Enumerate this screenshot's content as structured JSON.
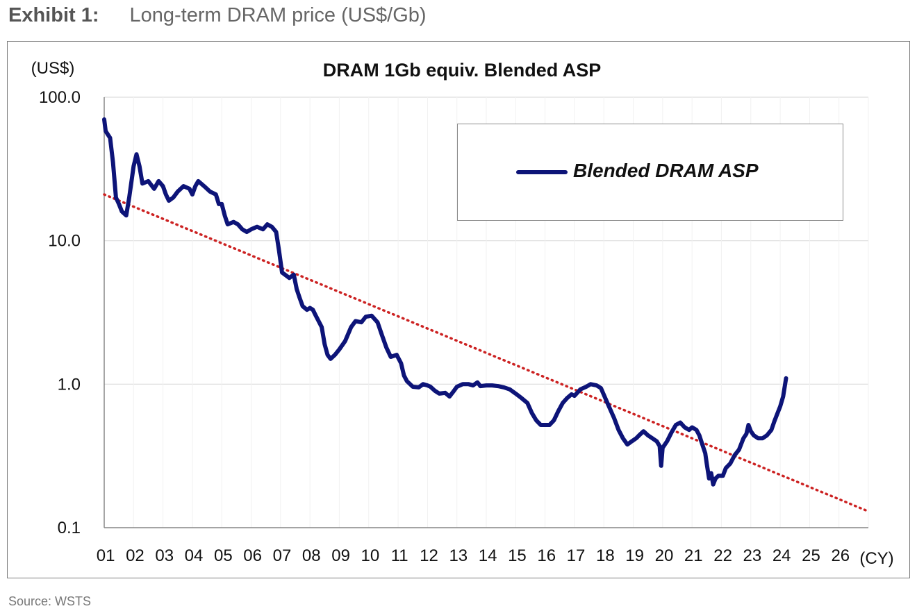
{
  "header": {
    "exhibit_label": "Exhibit 1:",
    "exhibit_title": "Long-term DRAM price (US$/Gb)"
  },
  "footer": {
    "source": "Source: WSTS"
  },
  "colors": {
    "series": "#0d1478",
    "trend": "#cc2222",
    "grid": "#dddddd"
  },
  "chart_data": {
    "type": "line",
    "title": "DRAM 1Gb equiv. Blended ASP",
    "ylabel": "(US$)",
    "xlabel": "(CY)",
    "yscale": "log",
    "ylim": [
      0.1,
      100
    ],
    "xlim": [
      2001,
      2027
    ],
    "yticks": [
      {
        "value": 100,
        "label": "100.0"
      },
      {
        "value": 10,
        "label": "10.0"
      },
      {
        "value": 1,
        "label": "1.0"
      },
      {
        "value": 0.1,
        "label": "0.1"
      }
    ],
    "xticks": [
      "01",
      "02",
      "03",
      "04",
      "05",
      "06",
      "07",
      "08",
      "09",
      "10",
      "11",
      "12",
      "13",
      "14",
      "15",
      "16",
      "17",
      "18",
      "19",
      "20",
      "21",
      "22",
      "23",
      "24",
      "25",
      "26"
    ],
    "grid": true,
    "legend_position": "top-right",
    "series": [
      {
        "name": "Blended DRAM ASP",
        "style": "solid",
        "points": [
          [
            2001.0,
            70
          ],
          [
            2001.05,
            58
          ],
          [
            2001.2,
            52
          ],
          [
            2001.3,
            35
          ],
          [
            2001.4,
            20
          ],
          [
            2001.5,
            18
          ],
          [
            2001.6,
            16
          ],
          [
            2001.75,
            15
          ],
          [
            2001.85,
            20
          ],
          [
            2002.0,
            33
          ],
          [
            2002.1,
            40
          ],
          [
            2002.2,
            33
          ],
          [
            2002.3,
            25
          ],
          [
            2002.5,
            26
          ],
          [
            2002.7,
            23
          ],
          [
            2002.85,
            26
          ],
          [
            2003.0,
            24
          ],
          [
            2003.1,
            21
          ],
          [
            2003.2,
            19
          ],
          [
            2003.35,
            20
          ],
          [
            2003.5,
            22
          ],
          [
            2003.7,
            24
          ],
          [
            2003.9,
            23
          ],
          [
            2004.0,
            21
          ],
          [
            2004.1,
            24
          ],
          [
            2004.2,
            26
          ],
          [
            2004.4,
            24
          ],
          [
            2004.6,
            22
          ],
          [
            2004.8,
            21
          ],
          [
            2004.9,
            18
          ],
          [
            2005.0,
            18
          ],
          [
            2005.1,
            15
          ],
          [
            2005.2,
            13
          ],
          [
            2005.4,
            13.5
          ],
          [
            2005.55,
            13
          ],
          [
            2005.7,
            12
          ],
          [
            2005.85,
            11.5
          ],
          [
            2006.0,
            12
          ],
          [
            2006.2,
            12.5
          ],
          [
            2006.4,
            12
          ],
          [
            2006.55,
            13
          ],
          [
            2006.7,
            12.5
          ],
          [
            2006.85,
            11.5
          ],
          [
            2006.95,
            8.5
          ],
          [
            2007.05,
            6
          ],
          [
            2007.15,
            5.8
          ],
          [
            2007.3,
            5.5
          ],
          [
            2007.45,
            5.8
          ],
          [
            2007.55,
            4.6
          ],
          [
            2007.65,
            4.0
          ],
          [
            2007.75,
            3.5
          ],
          [
            2007.9,
            3.3
          ],
          [
            2008.0,
            3.4
          ],
          [
            2008.1,
            3.3
          ],
          [
            2008.2,
            3.0
          ],
          [
            2008.4,
            2.5
          ],
          [
            2008.5,
            1.9
          ],
          [
            2008.6,
            1.6
          ],
          [
            2008.7,
            1.5
          ],
          [
            2008.85,
            1.6
          ],
          [
            2009.0,
            1.75
          ],
          [
            2009.2,
            2.0
          ],
          [
            2009.4,
            2.5
          ],
          [
            2009.55,
            2.75
          ],
          [
            2009.75,
            2.7
          ],
          [
            2009.9,
            2.95
          ],
          [
            2010.1,
            3.0
          ],
          [
            2010.3,
            2.7
          ],
          [
            2010.45,
            2.2
          ],
          [
            2010.6,
            1.8
          ],
          [
            2010.75,
            1.55
          ],
          [
            2010.95,
            1.6
          ],
          [
            2011.1,
            1.4
          ],
          [
            2011.2,
            1.15
          ],
          [
            2011.3,
            1.05
          ],
          [
            2011.5,
            0.96
          ],
          [
            2011.7,
            0.95
          ],
          [
            2011.85,
            1.0
          ],
          [
            2012.0,
            0.98
          ],
          [
            2012.1,
            0.96
          ],
          [
            2012.25,
            0.9
          ],
          [
            2012.4,
            0.86
          ],
          [
            2012.6,
            0.87
          ],
          [
            2012.75,
            0.82
          ],
          [
            2012.9,
            0.9
          ],
          [
            2013.0,
            0.96
          ],
          [
            2013.2,
            1.0
          ],
          [
            2013.4,
            1.0
          ],
          [
            2013.55,
            0.98
          ],
          [
            2013.7,
            1.03
          ],
          [
            2013.8,
            0.97
          ],
          [
            2014.0,
            0.98
          ],
          [
            2014.2,
            0.98
          ],
          [
            2014.4,
            0.97
          ],
          [
            2014.6,
            0.95
          ],
          [
            2014.8,
            0.92
          ],
          [
            2015.0,
            0.86
          ],
          [
            2015.2,
            0.8
          ],
          [
            2015.4,
            0.74
          ],
          [
            2015.55,
            0.63
          ],
          [
            2015.7,
            0.56
          ],
          [
            2015.85,
            0.52
          ],
          [
            2016.0,
            0.52
          ],
          [
            2016.15,
            0.52
          ],
          [
            2016.3,
            0.56
          ],
          [
            2016.45,
            0.65
          ],
          [
            2016.6,
            0.74
          ],
          [
            2016.75,
            0.8
          ],
          [
            2016.9,
            0.85
          ],
          [
            2017.0,
            0.83
          ],
          [
            2017.2,
            0.92
          ],
          [
            2017.4,
            0.96
          ],
          [
            2017.55,
            1.0
          ],
          [
            2017.75,
            0.98
          ],
          [
            2017.9,
            0.94
          ],
          [
            2018.05,
            0.8
          ],
          [
            2018.2,
            0.68
          ],
          [
            2018.35,
            0.58
          ],
          [
            2018.5,
            0.48
          ],
          [
            2018.65,
            0.42
          ],
          [
            2018.8,
            0.38
          ],
          [
            2018.95,
            0.4
          ],
          [
            2019.1,
            0.42
          ],
          [
            2019.2,
            0.44
          ],
          [
            2019.35,
            0.47
          ],
          [
            2019.5,
            0.44
          ],
          [
            2019.65,
            0.42
          ],
          [
            2019.8,
            0.4
          ],
          [
            2019.9,
            0.37
          ],
          [
            2019.95,
            0.27
          ],
          [
            2020.0,
            0.36
          ],
          [
            2020.15,
            0.4
          ],
          [
            2020.3,
            0.46
          ],
          [
            2020.45,
            0.52
          ],
          [
            2020.6,
            0.54
          ],
          [
            2020.75,
            0.5
          ],
          [
            2020.9,
            0.48
          ],
          [
            2021.0,
            0.5
          ],
          [
            2021.15,
            0.48
          ],
          [
            2021.25,
            0.44
          ],
          [
            2021.35,
            0.38
          ],
          [
            2021.45,
            0.33
          ],
          [
            2021.5,
            0.28
          ],
          [
            2021.58,
            0.22
          ],
          [
            2021.65,
            0.24
          ],
          [
            2021.72,
            0.2
          ],
          [
            2021.8,
            0.22
          ],
          [
            2021.9,
            0.23
          ],
          [
            2022.05,
            0.23
          ],
          [
            2022.15,
            0.26
          ],
          [
            2022.3,
            0.28
          ],
          [
            2022.45,
            0.32
          ],
          [
            2022.6,
            0.35
          ],
          [
            2022.75,
            0.42
          ],
          [
            2022.85,
            0.45
          ],
          [
            2022.92,
            0.52
          ],
          [
            2023.0,
            0.47
          ],
          [
            2023.1,
            0.44
          ],
          [
            2023.25,
            0.42
          ],
          [
            2023.4,
            0.42
          ],
          [
            2023.55,
            0.44
          ],
          [
            2023.7,
            0.48
          ],
          [
            2023.8,
            0.55
          ],
          [
            2023.9,
            0.62
          ],
          [
            2024.0,
            0.7
          ],
          [
            2024.1,
            0.82
          ],
          [
            2024.2,
            1.1
          ]
        ]
      },
      {
        "name": "",
        "style": "dotted",
        "points": [
          [
            2001.0,
            21
          ],
          [
            2027.0,
            0.13
          ]
        ]
      }
    ]
  }
}
